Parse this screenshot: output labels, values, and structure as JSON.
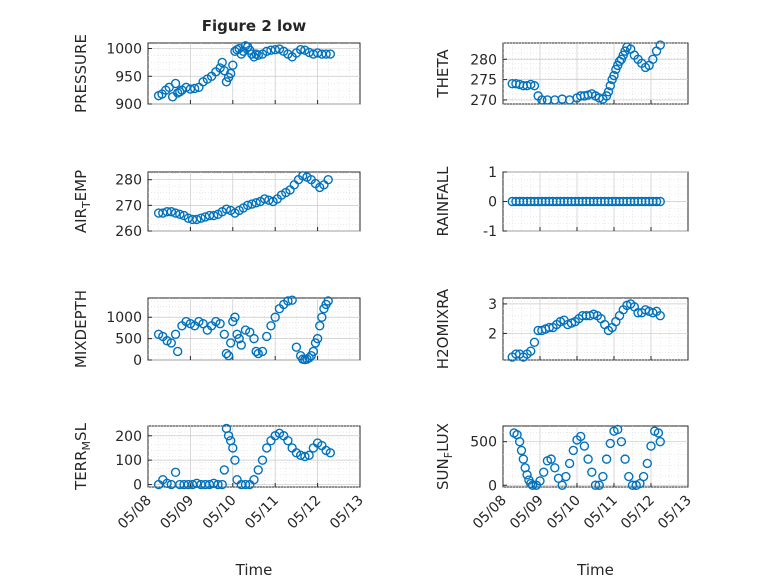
{
  "figure": {
    "title": "Figure 2 low",
    "marker_color": "#0072bd"
  },
  "chart_data": [
    {
      "type": "scatter",
      "title": "Figure 2 low",
      "ylabel": "PRESSURE",
      "xlabel": "",
      "ylim": [
        900,
        1010
      ],
      "yticks": [
        900,
        950,
        1000
      ],
      "xlim": [
        "05/08",
        "05/13"
      ],
      "xticks": [
        "05/08",
        "05/09",
        "05/10",
        "05/11",
        "05/12",
        "05/13"
      ],
      "grid": true,
      "x_start": "05/08",
      "x": [
        0.25,
        0.33,
        0.42,
        0.5,
        0.58,
        0.65,
        0.7,
        0.75,
        0.8,
        0.9,
        1.0,
        1.1,
        1.2,
        1.3,
        1.4,
        1.5,
        1.6,
        1.7,
        1.75,
        1.8,
        1.85,
        1.9,
        1.95,
        2.0,
        2.05,
        2.1,
        2.15,
        2.2,
        2.25,
        2.3,
        2.35,
        2.4,
        2.45,
        2.5,
        2.55,
        2.6,
        2.7,
        2.8,
        2.9,
        3.0,
        3.1,
        3.2,
        3.3,
        3.4,
        3.5,
        3.6,
        3.7,
        3.8,
        3.9,
        4.0,
        4.1,
        4.2,
        4.3
      ],
      "y": [
        915,
        918,
        925,
        930,
        913,
        937,
        920,
        922,
        925,
        930,
        927,
        928,
        930,
        940,
        945,
        950,
        958,
        965,
        975,
        960,
        940,
        948,
        955,
        970,
        995,
        998,
        1000,
        990,
        995,
        1005,
        1003,
        997,
        990,
        985,
        990,
        988,
        990,
        995,
        997,
        998,
        999,
        995,
        990,
        985,
        992,
        998,
        997,
        993,
        990,
        992,
        990,
        990,
        990
      ]
    },
    {
      "type": "scatter",
      "title": "",
      "ylabel": "THETA",
      "xlabel": "",
      "ylim": [
        269,
        284
      ],
      "yticks": [
        270,
        275,
        280
      ],
      "xlim": [
        "05/08",
        "05/13"
      ],
      "xticks": [
        "05/08",
        "05/09",
        "05/10",
        "05/11",
        "05/12",
        "05/13"
      ],
      "grid": true,
      "x": [
        0.25,
        0.35,
        0.45,
        0.55,
        0.65,
        0.75,
        0.85,
        0.95,
        1.05,
        1.2,
        1.4,
        1.6,
        1.8,
        2.0,
        2.1,
        2.2,
        2.3,
        2.4,
        2.5,
        2.6,
        2.7,
        2.8,
        2.85,
        2.9,
        2.95,
        3.0,
        3.05,
        3.1,
        3.15,
        3.2,
        3.25,
        3.3,
        3.35,
        3.45,
        3.55,
        3.65,
        3.75,
        3.85,
        3.95,
        4.05,
        4.15,
        4.25
      ],
      "y": [
        274,
        274,
        273.8,
        273.5,
        273.5,
        273.8,
        273.5,
        271,
        270,
        270,
        270,
        270.2,
        270,
        270.5,
        271,
        271,
        271.2,
        271.5,
        271,
        270.5,
        270.2,
        271,
        272,
        273.5,
        275,
        276,
        277.5,
        278.5,
        279.5,
        280,
        281,
        282,
        283,
        282.5,
        281,
        280,
        279,
        278,
        278.5,
        280,
        282,
        283.5
      ]
    },
    {
      "type": "scatter",
      "title": "",
      "ylabel": "AIR_TEMP",
      "xlabel": "",
      "ylim": [
        260,
        283
      ],
      "yticks": [
        260,
        270,
        280
      ],
      "xlim": [
        "05/08",
        "05/13"
      ],
      "xticks": [
        "05/08",
        "05/09",
        "05/10",
        "05/11",
        "05/12",
        "05/13"
      ],
      "grid": true,
      "x": [
        0.25,
        0.35,
        0.45,
        0.55,
        0.65,
        0.75,
        0.85,
        0.95,
        1.05,
        1.15,
        1.25,
        1.35,
        1.45,
        1.55,
        1.65,
        1.75,
        1.85,
        1.95,
        2.05,
        2.15,
        2.25,
        2.35,
        2.45,
        2.55,
        2.65,
        2.75,
        2.85,
        2.95,
        3.05,
        3.15,
        3.25,
        3.35,
        3.45,
        3.55,
        3.65,
        3.75,
        3.85,
        3.95,
        4.05,
        4.15,
        4.25
      ],
      "y": [
        267,
        267,
        267.5,
        267.5,
        267,
        266.5,
        266,
        265,
        264.5,
        264.5,
        265,
        265.5,
        266,
        266,
        266.5,
        267.5,
        268.5,
        268,
        267,
        268,
        269,
        270,
        270.5,
        271,
        271.5,
        272.5,
        272,
        271.5,
        272.5,
        274,
        275,
        276,
        278,
        280,
        281.5,
        281,
        280,
        278.5,
        277,
        278,
        280
      ]
    },
    {
      "type": "scatter",
      "title": "",
      "ylabel": "RAINFALL",
      "xlabel": "",
      "ylim": [
        -1,
        1
      ],
      "yticks": [
        -1,
        0,
        1
      ],
      "xlim": [
        "05/08",
        "05/13"
      ],
      "xticks": [
        "05/08",
        "05/09",
        "05/10",
        "05/11",
        "05/12",
        "05/13"
      ],
      "grid": true,
      "x": [
        0.25,
        0.35,
        0.45,
        0.55,
        0.65,
        0.75,
        0.85,
        0.95,
        1.05,
        1.15,
        1.25,
        1.35,
        1.45,
        1.55,
        1.65,
        1.75,
        1.85,
        1.95,
        2.05,
        2.15,
        2.25,
        2.35,
        2.45,
        2.55,
        2.65,
        2.75,
        2.85,
        2.95,
        3.05,
        3.15,
        3.25,
        3.35,
        3.45,
        3.55,
        3.65,
        3.75,
        3.85,
        3.95,
        4.05,
        4.15,
        4.25
      ],
      "y": [
        0,
        0,
        0,
        0,
        0,
        0,
        0,
        0,
        0,
        0,
        0,
        0,
        0,
        0,
        0,
        0,
        0,
        0,
        0,
        0,
        0,
        0,
        0,
        0,
        0,
        0,
        0,
        0,
        0,
        0,
        0,
        0,
        0,
        0,
        0,
        0,
        0,
        0,
        0,
        0,
        0
      ]
    },
    {
      "type": "scatter",
      "title": "",
      "ylabel": "MIXDEPTH",
      "xlabel": "",
      "ylim": [
        0,
        1450
      ],
      "yticks": [
        0,
        500,
        1000
      ],
      "xlim": [
        "05/08",
        "05/13"
      ],
      "xticks": [
        "05/08",
        "05/09",
        "05/10",
        "05/11",
        "05/12",
        "05/13"
      ],
      "grid": true,
      "x": [
        0.25,
        0.35,
        0.45,
        0.55,
        0.65,
        0.7,
        0.8,
        0.9,
        1.0,
        1.1,
        1.2,
        1.3,
        1.4,
        1.5,
        1.6,
        1.7,
        1.8,
        1.85,
        1.9,
        1.95,
        2.0,
        2.05,
        2.1,
        2.15,
        2.2,
        2.3,
        2.4,
        2.5,
        2.55,
        2.6,
        2.7,
        2.8,
        2.9,
        3.0,
        3.1,
        3.2,
        3.3,
        3.4,
        3.5,
        3.6,
        3.65,
        3.7,
        3.75,
        3.8,
        3.85,
        3.9,
        3.95,
        4.0,
        4.05,
        4.1,
        4.15,
        4.2,
        4.25
      ],
      "y": [
        600,
        550,
        450,
        400,
        600,
        200,
        800,
        900,
        850,
        800,
        900,
        850,
        700,
        800,
        900,
        850,
        600,
        150,
        100,
        400,
        900,
        1000,
        600,
        500,
        350,
        700,
        650,
        500,
        200,
        150,
        200,
        550,
        800,
        1000,
        1200,
        1300,
        1380,
        1400,
        300,
        100,
        20,
        10,
        20,
        50,
        100,
        200,
        400,
        500,
        800,
        1000,
        1200,
        1300,
        1380
      ]
    },
    {
      "type": "scatter",
      "title": "",
      "ylabel": "H2OMIXRA",
      "xlabel": "",
      "ylim": [
        1.1,
        3.2
      ],
      "yticks": [
        2,
        3
      ],
      "xlim": [
        "05/08",
        "05/13"
      ],
      "xticks": [
        "05/08",
        "05/09",
        "05/10",
        "05/11",
        "05/12",
        "05/13"
      ],
      "grid": true,
      "x": [
        0.25,
        0.35,
        0.45,
        0.55,
        0.65,
        0.75,
        0.85,
        0.95,
        1.05,
        1.15,
        1.25,
        1.35,
        1.45,
        1.55,
        1.65,
        1.75,
        1.85,
        1.95,
        2.05,
        2.15,
        2.25,
        2.35,
        2.45,
        2.55,
        2.65,
        2.75,
        2.85,
        2.95,
        3.05,
        3.15,
        3.25,
        3.35,
        3.45,
        3.55,
        3.65,
        3.75,
        3.85,
        3.95,
        4.05,
        4.15,
        4.25
      ],
      "y": [
        1.2,
        1.3,
        1.3,
        1.2,
        1.3,
        1.4,
        1.7,
        2.1,
        2.1,
        2.15,
        2.2,
        2.2,
        2.3,
        2.4,
        2.45,
        2.3,
        2.35,
        2.4,
        2.5,
        2.6,
        2.6,
        2.6,
        2.65,
        2.6,
        2.5,
        2.3,
        2.1,
        2.2,
        2.4,
        2.6,
        2.8,
        2.95,
        3.0,
        2.9,
        2.7,
        2.7,
        2.8,
        2.75,
        2.7,
        2.75,
        2.6
      ]
    },
    {
      "type": "scatter",
      "title": "",
      "ylabel": "TERR_MSL",
      "xlabel": "Time",
      "ylim": [
        -10,
        240
      ],
      "yticks": [
        0,
        100,
        200
      ],
      "xlim": [
        "05/08",
        "05/13"
      ],
      "xticks": [
        "05/08",
        "05/09",
        "05/10",
        "05/11",
        "05/12",
        "05/13"
      ],
      "grid": true,
      "x": [
        0.25,
        0.35,
        0.45,
        0.55,
        0.65,
        0.75,
        0.85,
        0.95,
        1.05,
        1.15,
        1.25,
        1.35,
        1.45,
        1.55,
        1.65,
        1.75,
        1.8,
        1.85,
        1.9,
        1.95,
        2.0,
        2.05,
        2.1,
        2.2,
        2.3,
        2.4,
        2.5,
        2.6,
        2.7,
        2.8,
        2.9,
        3.0,
        3.1,
        3.2,
        3.3,
        3.4,
        3.5,
        3.6,
        3.7,
        3.8,
        3.9,
        4.0,
        4.1,
        4.2,
        4.3
      ],
      "y": [
        0,
        20,
        5,
        0,
        50,
        0,
        0,
        0,
        0,
        5,
        0,
        0,
        0,
        5,
        0,
        0,
        60,
        230,
        200,
        180,
        150,
        100,
        20,
        0,
        0,
        0,
        20,
        60,
        100,
        150,
        180,
        200,
        210,
        200,
        180,
        150,
        130,
        120,
        115,
        120,
        150,
        170,
        160,
        140,
        130
      ]
    },
    {
      "type": "scatter",
      "title": "",
      "ylabel": "SUN_FLUX",
      "xlabel": "Time",
      "ylim": [
        -20,
        680
      ],
      "yticks": [
        0,
        500
      ],
      "xlim": [
        "05/08",
        "05/13"
      ],
      "xticks": [
        "05/08",
        "05/09",
        "05/10",
        "05/11",
        "05/12",
        "05/13"
      ],
      "grid": true,
      "x": [
        0.3,
        0.38,
        0.45,
        0.5,
        0.55,
        0.6,
        0.65,
        0.7,
        0.75,
        0.8,
        0.9,
        1.0,
        1.1,
        1.2,
        1.3,
        1.4,
        1.5,
        1.6,
        1.7,
        1.8,
        1.9,
        2.0,
        2.1,
        2.2,
        2.3,
        2.4,
        2.5,
        2.6,
        2.7,
        2.8,
        2.9,
        3.0,
        3.1,
        3.2,
        3.3,
        3.4,
        3.5,
        3.6,
        3.7,
        3.8,
        3.9,
        4.0,
        4.1,
        4.2,
        4.25
      ],
      "y": [
        600,
        580,
        500,
        400,
        300,
        200,
        120,
        60,
        20,
        0,
        0,
        50,
        150,
        280,
        300,
        200,
        80,
        0,
        100,
        250,
        400,
        520,
        560,
        450,
        300,
        150,
        0,
        0,
        100,
        300,
        480,
        620,
        640,
        500,
        300,
        100,
        0,
        0,
        20,
        100,
        250,
        450,
        620,
        600,
        500
      ]
    }
  ]
}
